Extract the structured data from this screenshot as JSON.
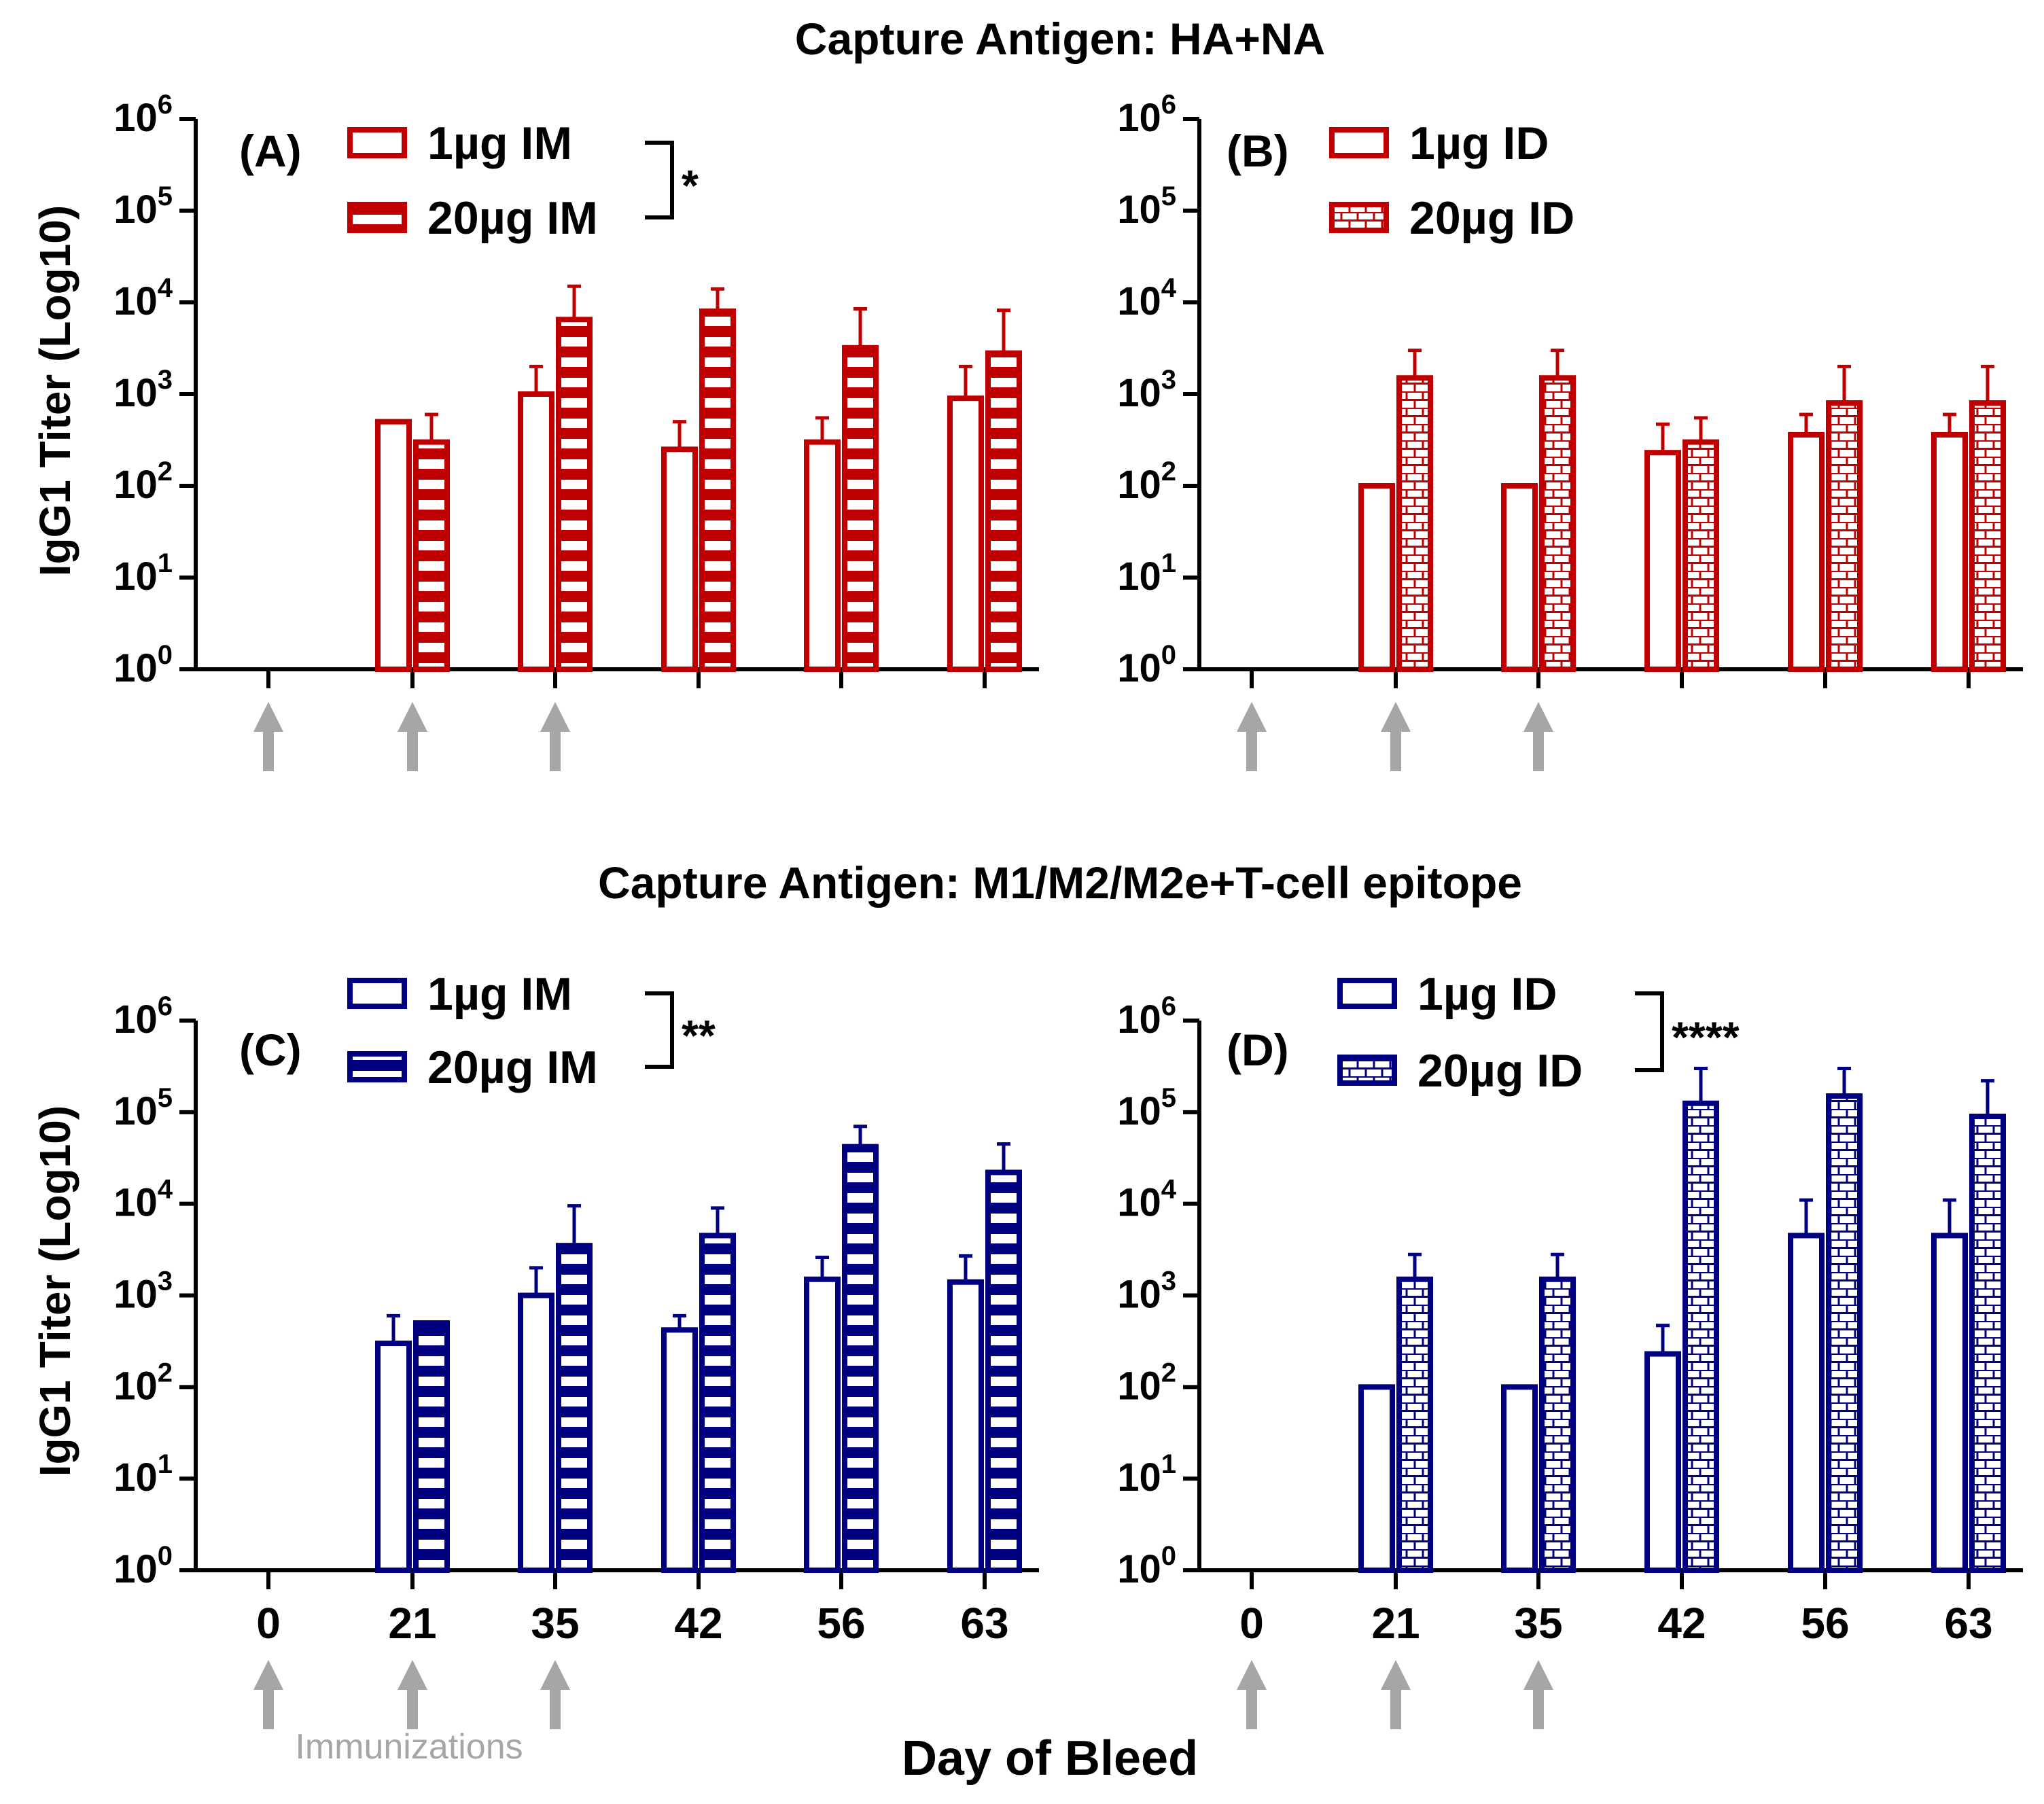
{
  "section_titles": {
    "top": "Capture Antigen: HA+NA",
    "bottom": "Capture Antigen: M1/M2/M2e+T-cell epitope"
  },
  "y_axis": {
    "label": "IgG1 Titer (Log10)",
    "tick_base": "10",
    "tick_exponents": [
      "0",
      "1",
      "2",
      "3",
      "4",
      "5",
      "6"
    ]
  },
  "x_axis": {
    "label": "Day of Bleed",
    "categories": [
      "0",
      "21",
      "35",
      "42",
      "56",
      "63"
    ]
  },
  "immunizations_label": "Immunizations",
  "colors": {
    "red": "#c00000",
    "blue": "#000080",
    "arrow": "#a6a6a6",
    "axis": "#000000"
  },
  "chart_data": [
    {
      "id": "A",
      "panel_label": "(A)",
      "type": "bar",
      "title": "Capture Antigen: HA+NA",
      "xlabel": "Day of Bleed",
      "ylabel": "IgG1 Titer (Log10)",
      "yscale": "log10",
      "ylim": [
        1,
        1000000
      ],
      "categories": [
        "0",
        "21",
        "35",
        "42",
        "56",
        "63"
      ],
      "immunization_days": [
        "0",
        "21",
        "35"
      ],
      "color": "#c00000",
      "significance": "*",
      "series": [
        {
          "name": "1µg IM",
          "pattern": "open",
          "values": [
            null,
            500,
            1000,
            250,
            300,
            900
          ],
          "errors": [
            null,
            null,
            2000,
            500,
            550,
            2000
          ]
        },
        {
          "name": "20µg IM",
          "pattern": "stripes",
          "values": [
            null,
            300,
            6500,
            8000,
            3200,
            2800
          ],
          "errors": [
            null,
            600,
            15000,
            14000,
            8500,
            8200
          ]
        }
      ]
    },
    {
      "id": "B",
      "panel_label": "(B)",
      "type": "bar",
      "title": "Capture Antigen: HA+NA",
      "xlabel": "Day of Bleed",
      "ylabel": "IgG1 Titer (Log10)",
      "yscale": "log10",
      "ylim": [
        1,
        1000000
      ],
      "categories": [
        "0",
        "21",
        "35",
        "42",
        "56",
        "63"
      ],
      "immunization_days": [
        "0",
        "21",
        "35"
      ],
      "color": "#c00000",
      "significance": "",
      "series": [
        {
          "name": "1µg ID",
          "pattern": "open",
          "values": [
            null,
            100,
            100,
            230,
            360,
            360
          ],
          "errors": [
            null,
            null,
            null,
            470,
            600,
            600
          ]
        },
        {
          "name": "20µg ID",
          "pattern": "bricks",
          "values": [
            null,
            1500,
            1500,
            300,
            800,
            800
          ],
          "errors": [
            null,
            3000,
            3000,
            550,
            2000,
            2000
          ]
        }
      ]
    },
    {
      "id": "C",
      "panel_label": "(C)",
      "type": "bar",
      "title": "Capture Antigen: M1/M2/M2e+T-cell epitope",
      "xlabel": "Day of Bleed",
      "ylabel": "IgG1 Titer (Log10)",
      "yscale": "log10",
      "ylim": [
        1,
        1000000
      ],
      "categories": [
        "0",
        "21",
        "35",
        "42",
        "56",
        "63"
      ],
      "immunization_days": [
        "0",
        "21",
        "35"
      ],
      "color": "#000080",
      "significance": "**",
      "series": [
        {
          "name": "1µg IM",
          "pattern": "open",
          "values": [
            null,
            300,
            1000,
            420,
            1500,
            1400
          ],
          "errors": [
            null,
            600,
            2000,
            600,
            2600,
            2700
          ]
        },
        {
          "name": "20µg IM",
          "pattern": "stripes",
          "values": [
            null,
            500,
            3500,
            4500,
            42000,
            22000
          ],
          "errors": [
            null,
            null,
            9500,
            9000,
            70000,
            45000
          ]
        }
      ]
    },
    {
      "id": "D",
      "panel_label": "(D)",
      "type": "bar",
      "title": "Capture Antigen: M1/M2/M2e+T-cell epitope",
      "xlabel": "Day of Bleed",
      "ylabel": "IgG1 Titer (Log10)",
      "yscale": "log10",
      "ylim": [
        1,
        1000000
      ],
      "categories": [
        "0",
        "21",
        "35",
        "42",
        "56",
        "63"
      ],
      "immunization_days": [
        "0",
        "21",
        "35"
      ],
      "color": "#000080",
      "significance": "****",
      "series": [
        {
          "name": "1µg ID",
          "pattern": "open",
          "values": [
            null,
            100,
            100,
            230,
            4500,
            4500
          ],
          "errors": [
            null,
            null,
            null,
            470,
            11000,
            11000
          ]
        },
        {
          "name": "20µg ID",
          "pattern": "bricks",
          "values": [
            null,
            1500,
            1500,
            125000,
            150000,
            90000
          ],
          "errors": [
            null,
            2800,
            2800,
            300000,
            300000,
            220000
          ]
        }
      ]
    }
  ]
}
